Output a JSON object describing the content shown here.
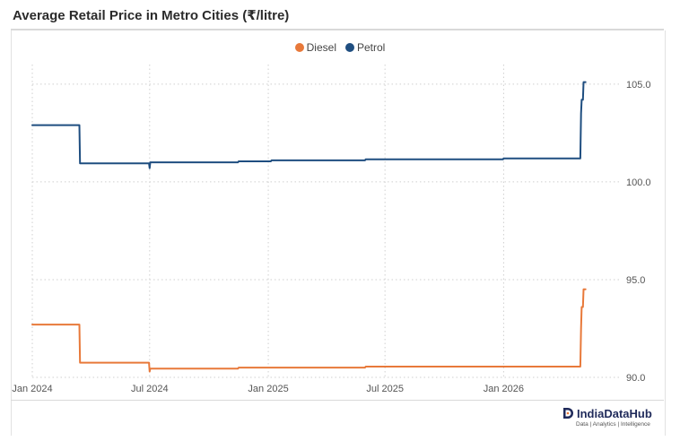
{
  "colors": {
    "diesel": "#E8793A",
    "petrol": "#1F4E80",
    "grid": "#cfcfcf",
    "axis_text": "#555555"
  },
  "brand": {
    "name": "IndiaDataHub",
    "tagline": "Data | Analytics | Intelligence",
    "logo_icon": "d-logo-icon"
  },
  "chart_data": {
    "type": "line",
    "title": "Average Retail Price in Metro Cities (₹/litre)",
    "legend_position": "top-center",
    "x_axis": {
      "type": "date",
      "range": [
        "2024-01-01",
        "2026-06-15"
      ],
      "ticks": [
        {
          "date": "2024-01-01",
          "label": "Jan 2024"
        },
        {
          "date": "2024-07-01",
          "label": "Jul 2024"
        },
        {
          "date": "2025-01-01",
          "label": "Jan 2025"
        },
        {
          "date": "2025-07-01",
          "label": "Jul 2025"
        },
        {
          "date": "2026-01-01",
          "label": "Jan 2026"
        }
      ]
    },
    "y_axis": {
      "position": "right",
      "range": [
        90,
        106
      ],
      "ticks": [
        {
          "value": 90,
          "label": "90.0"
        },
        {
          "value": 95,
          "label": "95.0"
        },
        {
          "value": 100,
          "label": "100.0"
        },
        {
          "value": 105,
          "label": "105.0"
        }
      ]
    },
    "grid": {
      "x": true,
      "y": true,
      "style": "dotted"
    },
    "series": [
      {
        "name": "Diesel",
        "color": "#E8793A",
        "points": [
          [
            "2024-01-01",
            92.7
          ],
          [
            "2024-03-14",
            92.7
          ],
          [
            "2024-03-15",
            90.75
          ],
          [
            "2024-06-30",
            90.75
          ],
          [
            "2024-07-01",
            90.3
          ],
          [
            "2024-07-02",
            90.45
          ],
          [
            "2024-11-15",
            90.45
          ],
          [
            "2024-11-16",
            90.5
          ],
          [
            "2025-05-31",
            90.5
          ],
          [
            "2025-06-01",
            90.55
          ],
          [
            "2026-04-30",
            90.55
          ],
          [
            "2026-05-01",
            92.5
          ],
          [
            "2026-05-02",
            93.6
          ],
          [
            "2026-05-04",
            93.6
          ],
          [
            "2026-05-05",
            94.5
          ],
          [
            "2026-05-08",
            94.5
          ]
        ]
      },
      {
        "name": "Petrol",
        "color": "#1F4E80",
        "points": [
          [
            "2024-01-01",
            102.9
          ],
          [
            "2024-03-14",
            102.9
          ],
          [
            "2024-03-15",
            100.95
          ],
          [
            "2024-06-30",
            100.95
          ],
          [
            "2024-07-01",
            100.7
          ],
          [
            "2024-07-02",
            101.0
          ],
          [
            "2024-11-15",
            101.0
          ],
          [
            "2024-11-16",
            101.05
          ],
          [
            "2025-01-05",
            101.05
          ],
          [
            "2025-01-06",
            101.1
          ],
          [
            "2025-05-31",
            101.1
          ],
          [
            "2025-06-01",
            101.15
          ],
          [
            "2025-12-31",
            101.15
          ],
          [
            "2026-01-01",
            101.2
          ],
          [
            "2026-04-30",
            101.2
          ],
          [
            "2026-05-01",
            103.5
          ],
          [
            "2026-05-02",
            104.2
          ],
          [
            "2026-05-04",
            104.2
          ],
          [
            "2026-05-05",
            105.1
          ],
          [
            "2026-05-08",
            105.1
          ]
        ]
      }
    ]
  }
}
